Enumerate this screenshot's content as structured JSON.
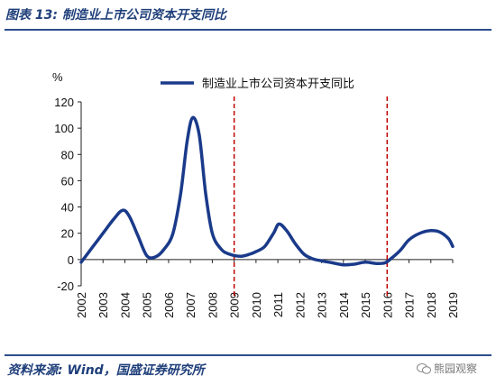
{
  "figure": {
    "title": "图表 13:  制造业上市公司资本开支同比",
    "source": "资料来源:  Wind，国盛证券研究所",
    "watermark": "熊园观察"
  },
  "chart_data": {
    "type": "line",
    "ylabel": "%",
    "xlabel": "",
    "ylim": [
      -20,
      120
    ],
    "yticks": [
      -20,
      0,
      20,
      40,
      60,
      80,
      100,
      120
    ],
    "xlim": [
      2002,
      2019
    ],
    "xticks": [
      "2002",
      "2003",
      "2004",
      "2005",
      "2006",
      "2007",
      "2008",
      "2009",
      "2010",
      "2011",
      "2012",
      "2013",
      "2014",
      "2015",
      "2016",
      "2017",
      "2018",
      "2019"
    ],
    "grid": false,
    "legend_position": "top",
    "series": [
      {
        "name": "制造业上市公司资本开支同比",
        "color": "#1a3a8a",
        "x": [
          2002,
          2002.5,
          2003,
          2003.5,
          2003.9,
          2004.2,
          2004.6,
          2005,
          2005.4,
          2005.8,
          2006.2,
          2006.55,
          2006.85,
          2007.1,
          2007.4,
          2007.7,
          2008,
          2008.4,
          2008.8,
          2009.3,
          2009.7,
          2010,
          2010.4,
          2010.8,
          2011.05,
          2011.4,
          2011.8,
          2012.2,
          2012.6,
          2013,
          2013.5,
          2014,
          2014.5,
          2015,
          2015.5,
          2015.9,
          2016.2,
          2016.6,
          2017,
          2017.5,
          2018,
          2018.4,
          2018.8,
          2019
        ],
        "y": [
          -2,
          9,
          20,
          31,
          37.5,
          33,
          18,
          3,
          2,
          8,
          20,
          50,
          90,
          108,
          95,
          50,
          20,
          8,
          4,
          2.5,
          4,
          6,
          10,
          20,
          27,
          22,
          12,
          4,
          0.5,
          -1,
          -2.5,
          -4,
          -3.5,
          -2,
          -3,
          -2.5,
          1,
          7,
          15,
          20,
          22,
          21,
          16,
          10
        ]
      }
    ],
    "annotations": [
      {
        "type": "vline",
        "x": 2009,
        "style": "dashed",
        "color": "#c00000"
      },
      {
        "type": "vline",
        "x": 2016,
        "style": "dashed",
        "color": "#c00000"
      }
    ]
  }
}
